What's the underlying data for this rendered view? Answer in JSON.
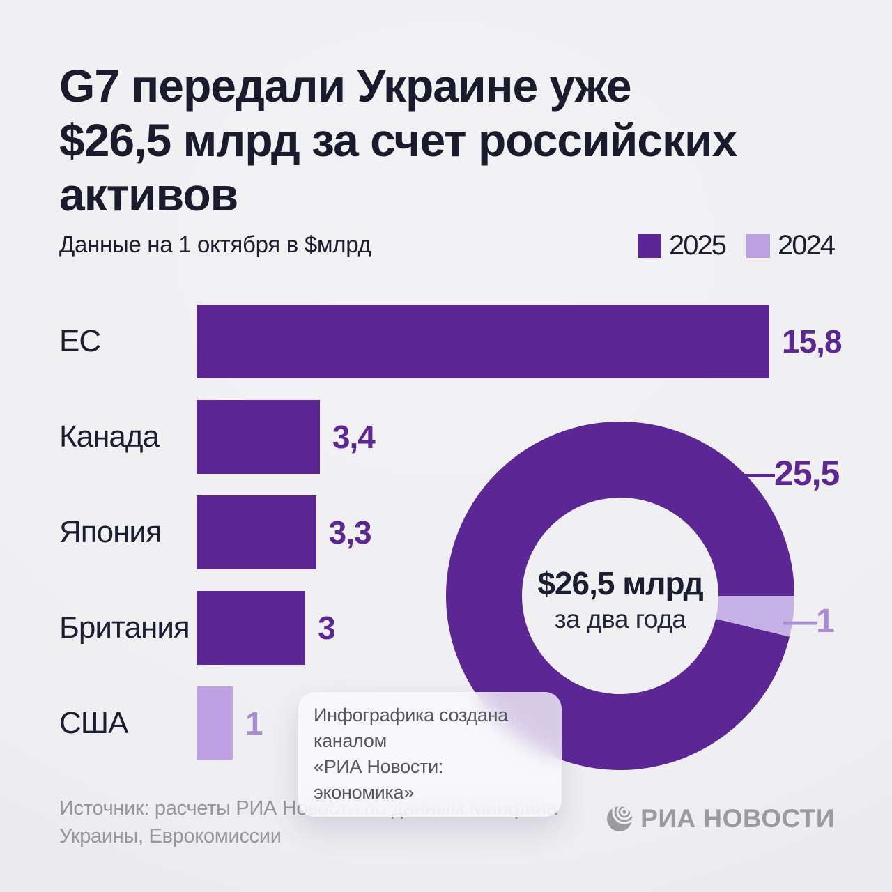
{
  "header": {
    "title_lines": [
      "G7 передали Украине уже",
      "$26,5 млрд за счет российских",
      "активов"
    ],
    "subtitle": "Данные на 1 октября в $млрд"
  },
  "legend": {
    "items": [
      {
        "label": "2025",
        "color": "#5c2795"
      },
      {
        "label": "2024",
        "color": "#bda1e3"
      }
    ]
  },
  "chart_data": [
    {
      "type": "bar",
      "orientation": "horizontal",
      "unit": "$млрд",
      "categories": [
        "ЕС",
        "Канада",
        "Япония",
        "Британия",
        "США"
      ],
      "values": [
        15.8,
        3.4,
        3.3,
        3,
        1
      ],
      "value_labels": [
        "15,8",
        "3,4",
        "3,3",
        "3",
        "1"
      ],
      "bar_years": [
        "2025",
        "2025",
        "2025",
        "2025",
        "2024"
      ],
      "xlim": [
        0,
        15.8
      ],
      "bar_colors": {
        "2025": "#5c2795",
        "2024": "#bda1e3"
      },
      "value_label_colors": {
        "2025": "#5c2795",
        "2024": "#a88dd4"
      }
    },
    {
      "type": "donut",
      "total": 26.5,
      "start_angle_deg": 90,
      "slices": [
        {
          "label": "—1",
          "value": 1,
          "year": "2024",
          "color": "#c6b1e6"
        },
        {
          "label": "—25,5",
          "value": 25.5,
          "year": "2025",
          "color": "#5c2795"
        }
      ],
      "center_title": "$26,5 млрд",
      "center_subtitle": "за два года"
    }
  ],
  "tooltip": {
    "lines": [
      "Инфографика создана каналом",
      "«РИА Новости: экономика»"
    ]
  },
  "footer": {
    "source_lines": [
      "Источник: расчеты РИА Новости по данным Минфина",
      "Украины, Еврокомиссии"
    ],
    "logo_text": "РИА НОВОСТИ"
  }
}
